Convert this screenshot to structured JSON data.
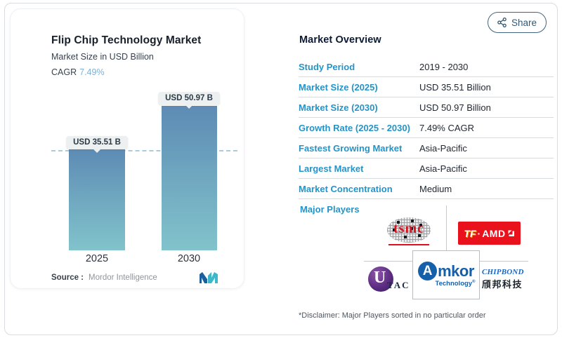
{
  "chart_data": {
    "type": "bar",
    "categories": [
      "2025",
      "2030"
    ],
    "values": [
      35.51,
      50.97
    ],
    "bar_labels": [
      "USD 35.51 B",
      "USD 50.97 B"
    ],
    "title": "Flip Chip Technology Market",
    "subtitle": "Market Size in USD Billion",
    "xlabel": "",
    "ylabel": "Market Size in USD Billion",
    "ylim": [
      0,
      55
    ],
    "grid": false,
    "reference_dashed_line_at": 35.51,
    "bar_color_top": "#5D8BB4",
    "bar_color_bottom": "#81C3CB"
  },
  "chart": {
    "title": "Flip Chip Technology Market",
    "subtitle": "Market Size in USD Billion",
    "cagr_label": "CAGR",
    "cagr_value": "7.49%",
    "source_label": "Source :",
    "source_value": "Mordor Intelligence"
  },
  "share": {
    "label": "Share",
    "icon": "share-nodes-icon"
  },
  "overview": {
    "title": "Market Overview",
    "rows": [
      {
        "label": "Study Period",
        "value": "2019 - 2030"
      },
      {
        "label": "Market Size (2025)",
        "value": "USD 35.51 Billion"
      },
      {
        "label": "Market Size (2030)",
        "value": "USD 50.97 Billion"
      },
      {
        "label": "Growth Rate (2025 - 2030)",
        "value": "7.49% CAGR"
      },
      {
        "label": "Fastest Growing Market",
        "value": "Asia-Pacific"
      },
      {
        "label": "Largest Market",
        "value": "Asia-Pacific"
      },
      {
        "label": "Market Concentration",
        "value": "Medium"
      }
    ]
  },
  "major_players": {
    "label": "Major Players",
    "players": [
      "tsmc",
      "TF·AMD",
      "UTAC",
      "Amkor Technology",
      "CHIPBOND 頎邦科技"
    ],
    "tsmc_text": "tsmc",
    "tfamd_tf": "TF",
    "tfamd_dot": "·",
    "tfamd_amd": "AMD",
    "utac_u": "U",
    "utac_tac": "TAC",
    "amkor_a": "A",
    "amkor_mkor": "mkor",
    "amkor_tech": "Technology",
    "amkor_reg": "®",
    "chipbond_en": "CHIPBOND",
    "chipbond_zh": "頎邦科技"
  },
  "disclaimer": "*Disclaimer: Major Players sorted in no particular order",
  "colors": {
    "accent_label_blue": "#2494C8",
    "header_navy": "#0C1A33",
    "cagr_light_blue": "#7FB0D4",
    "dashed_line": "#AACBDD",
    "tooltip_bg": "#EDF0F0",
    "share_border": "#40647F",
    "tsmc_red": "#D9121F",
    "tfamd_red": "#E8111C",
    "utac_purple": "#5C2D82",
    "amkor_blue": "#1560A8",
    "chipbond_blue": "#1467C8"
  }
}
